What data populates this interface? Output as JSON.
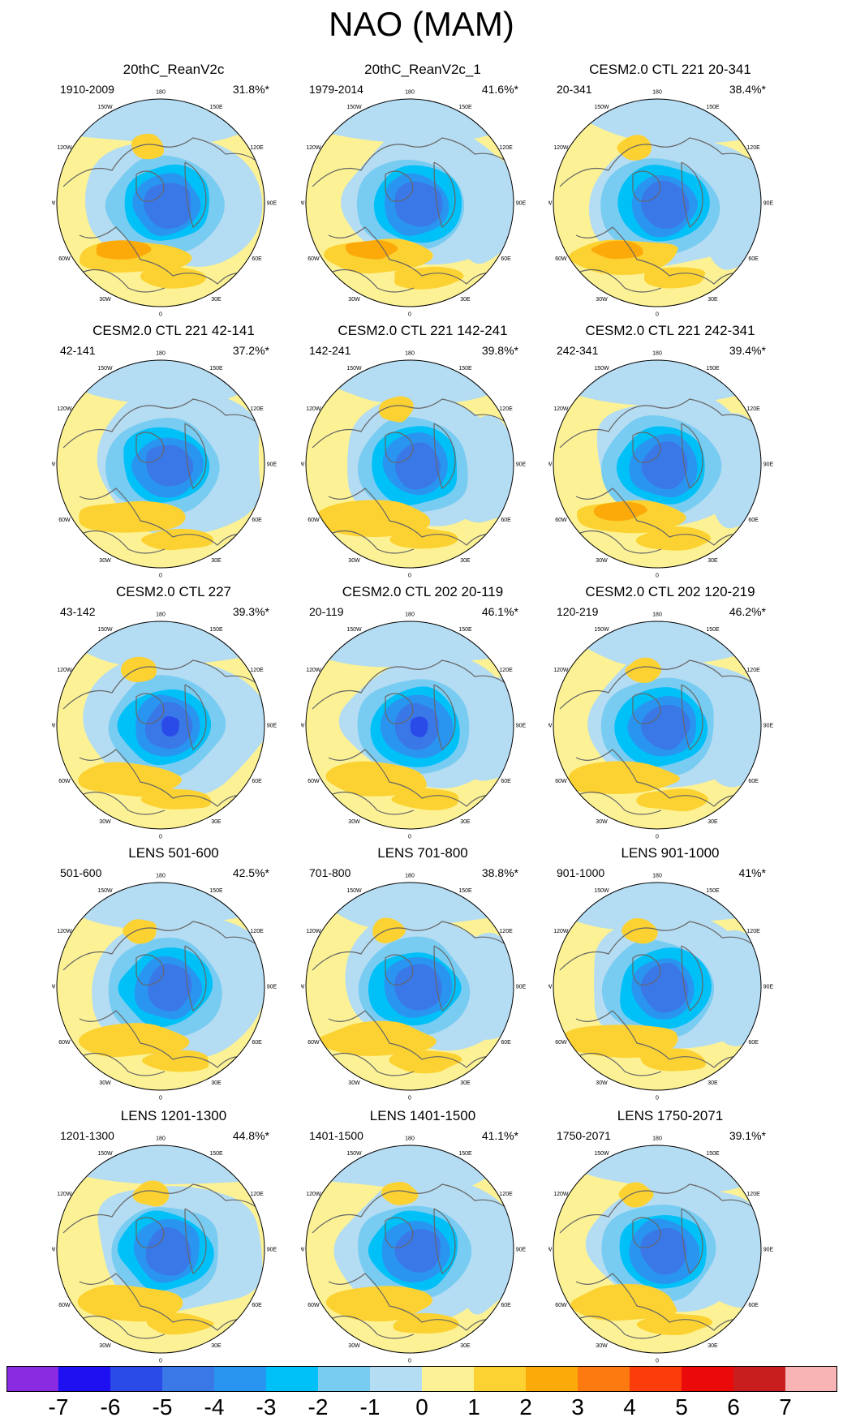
{
  "title": "NAO (MAM)",
  "longitude_labels": [
    "180",
    "150E",
    "120E",
    "90E",
    "60E",
    "30E",
    "0",
    "30W",
    "60W",
    "90W",
    "120W",
    "150W"
  ],
  "panels": [
    {
      "title": "20thC_ReanV2c",
      "years": "1910-2009",
      "pct": "31.8%*",
      "variant": 0
    },
    {
      "title": "20thC_ReanV2c_1",
      "years": "1979-2014",
      "pct": "41.6%*",
      "variant": 1
    },
    {
      "title": "CESM2.0 CTL 221 20-341",
      "years": "20-341",
      "pct": "38.4%*",
      "variant": 2
    },
    {
      "title": "CESM2.0 CTL 221 42-141",
      "years": "42-141",
      "pct": "37.2%*",
      "variant": 3
    },
    {
      "title": "CESM2.0 CTL 221 142-241",
      "years": "142-241",
      "pct": "39.8%*",
      "variant": 4
    },
    {
      "title": "CESM2.0 CTL 221 242-341",
      "years": "242-341",
      "pct": "39.4%*",
      "variant": 5
    },
    {
      "title": "CESM2.0 CTL 227",
      "years": "43-142",
      "pct": "39.3%*",
      "variant": 6
    },
    {
      "title": "CESM2.0 CTL 202 20-119",
      "years": "20-119",
      "pct": "46.1%*",
      "variant": 7
    },
    {
      "title": "CESM2.0 CTL 202 120-219",
      "years": "120-219",
      "pct": "46.2%*",
      "variant": 8
    },
    {
      "title": "LENS 501-600",
      "years": "501-600",
      "pct": "42.5%*",
      "variant": 9
    },
    {
      "title": "LENS 701-800",
      "years": "701-800",
      "pct": "38.8%*",
      "variant": 10
    },
    {
      "title": "LENS 901-1000",
      "years": "901-1000",
      "pct": "41%*",
      "variant": 11
    },
    {
      "title": "LENS 1201-1300",
      "years": "1201-1300",
      "pct": "44.8%*",
      "variant": 12
    },
    {
      "title": "LENS 1401-1500",
      "years": "1401-1500",
      "pct": "41.1%*",
      "variant": 13
    },
    {
      "title": "LENS 1750-2071",
      "years": "1750-2071",
      "pct": "39.1%*",
      "variant": 14
    }
  ],
  "colorbar": {
    "labels": [
      "-7",
      "-6",
      "-5",
      "-4",
      "-3",
      "-2",
      "-1",
      "0",
      "1",
      "2",
      "3",
      "4",
      "5",
      "6",
      "7"
    ],
    "colors": [
      "#8a2be2",
      "#1e10f0",
      "#2b4be8",
      "#3a78e8",
      "#2a95f0",
      "#00c0f8",
      "#78ccf2",
      "#b4dcf2",
      "#fcf295",
      "#fcd232",
      "#fcaa0a",
      "#fc7a10",
      "#fc3c0a",
      "#ea0a0a",
      "#c81e1e",
      "#f8b4b4"
    ]
  }
}
